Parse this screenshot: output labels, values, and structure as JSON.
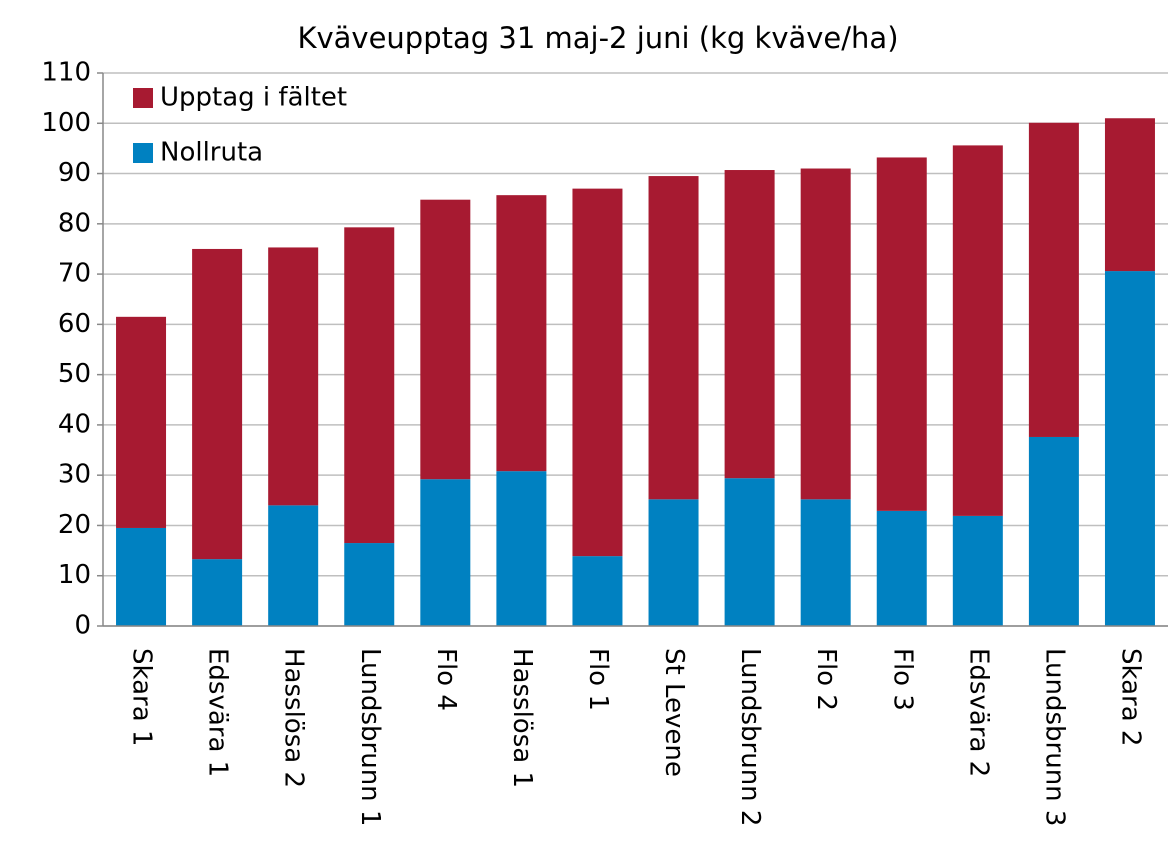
{
  "chart_data": {
    "type": "stacked_bar",
    "title": "Kväveupptag 31 maj-2 juni (kg kväve/ha)",
    "categories": [
      "Skara 1",
      "Edsvära 1",
      "Hasslösa 2",
      "Lundsbrunn 1",
      "Flo 4",
      "Hasslösa 1",
      "Flo 1",
      "St Levene",
      "Lundsbrunn 2",
      "Flo 2",
      "Flo 3",
      "Edsvära 2",
      "Lundsbrunn 3",
      "Skara 2"
    ],
    "series": [
      {
        "name": "Nollruta",
        "color": "#0081c1",
        "values": [
          19.5,
          13.3,
          24,
          16.5,
          29.2,
          30.8,
          13.9,
          25.2,
          29.4,
          25.2,
          22.9,
          21.9,
          37.6,
          70.6
        ]
      },
      {
        "name": "Upptag i fältet",
        "color": "#a71a31",
        "values": [
          42,
          61.7,
          51.3,
          62.8,
          55.6,
          54.9,
          73.1,
          64.3,
          61.3,
          65.8,
          70.3,
          73.7,
          62.5,
          30.4
        ]
      }
    ],
    "ylim": [
      0,
      110
    ],
    "yticks": [
      0,
      10,
      20,
      30,
      40,
      50,
      60,
      70,
      80,
      90,
      100,
      110
    ],
    "grid": true
  }
}
